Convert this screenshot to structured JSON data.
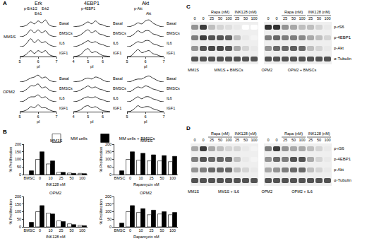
{
  "profiles": {
    "letter": "A",
    "cell_lines": [
      "MM1S",
      "OPM2"
    ],
    "conditions": [
      "Basal",
      "BMSCs",
      "IL6",
      "IGF1"
    ],
    "x_label": "pI",
    "ylim": [
      0,
      1
    ],
    "tick_labels": "x",
    "columns": [
      {
        "title": "Erk",
        "x": [
          5,
          5.2,
          5.4,
          5.6,
          5.8,
          6,
          6.2,
          6.4,
          6.6,
          6.8,
          7
        ],
        "xlim": [
          5,
          7
        ],
        "xticks": [
          5,
          6,
          7
        ],
        "peaks": [
          {
            "label": "p-Erk1/2",
            "x": 5.6
          },
          {
            "label": "Erk1",
            "x": 6.0
          },
          {
            "label": "Erk2",
            "x": 6.4
          }
        ],
        "profiles": {
          "MM1S": [
            [
              0,
              0.05,
              0.2,
              0.5,
              0.3,
              0.6,
              0.4,
              0.7,
              0.2,
              0.05,
              0
            ],
            [
              0,
              0.05,
              0.3,
              0.7,
              0.4,
              0.7,
              0.4,
              0.6,
              0.2,
              0.05,
              0
            ],
            [
              0,
              0.05,
              0.4,
              0.8,
              0.4,
              0.7,
              0.4,
              0.5,
              0.2,
              0.05,
              0
            ],
            [
              0,
              0.05,
              0.3,
              0.6,
              0.3,
              0.6,
              0.4,
              0.6,
              0.2,
              0.05,
              0
            ]
          ],
          "OPM2": [
            [
              0,
              0.05,
              0.2,
              0.4,
              0.5,
              0.7,
              0.4,
              0.5,
              0.2,
              0.05,
              0
            ],
            [
              0,
              0.05,
              0.3,
              0.6,
              0.6,
              0.8,
              0.4,
              0.5,
              0.2,
              0.05,
              0
            ],
            [
              0,
              0.05,
              0.3,
              0.5,
              0.5,
              0.7,
              0.4,
              0.5,
              0.2,
              0.05,
              0
            ],
            [
              0,
              0.05,
              0.2,
              0.5,
              0.4,
              0.7,
              0.4,
              0.4,
              0.2,
              0.05,
              0
            ]
          ]
        }
      },
      {
        "title": "4EBP1",
        "x": [
          4,
          4.25,
          4.5,
          4.75,
          5,
          5.25,
          5.5,
          5.75,
          6,
          6.25,
          6.5
        ],
        "xlim": [
          4,
          6.5
        ],
        "xticks": [
          4,
          5,
          6
        ],
        "peaks": [
          {
            "label": "p-4EBP1",
            "x": 5.0
          }
        ],
        "profiles": {
          "MM1S": [
            [
              0,
              0.05,
              0.1,
              0.3,
              0.5,
              0.3,
              0.6,
              0.3,
              0.2,
              0.05,
              0
            ],
            [
              0,
              0.05,
              0.2,
              0.5,
              0.7,
              0.4,
              0.6,
              0.3,
              0.2,
              0.05,
              0
            ],
            [
              0,
              0.05,
              0.2,
              0.4,
              0.6,
              0.4,
              0.5,
              0.3,
              0.2,
              0.05,
              0
            ],
            [
              0,
              0.05,
              0.2,
              0.6,
              0.8,
              0.4,
              0.5,
              0.3,
              0.1,
              0.05,
              0
            ]
          ],
          "OPM2": [
            [
              0,
              0.05,
              0.1,
              0.3,
              0.4,
              0.3,
              0.5,
              0.4,
              0.2,
              0.05,
              0
            ],
            [
              0,
              0.05,
              0.2,
              0.4,
              0.6,
              0.4,
              0.5,
              0.3,
              0.2,
              0.05,
              0
            ],
            [
              0,
              0.05,
              0.2,
              0.4,
              0.5,
              0.4,
              0.5,
              0.3,
              0.2,
              0.05,
              0
            ],
            [
              0,
              0.05,
              0.2,
              0.5,
              0.6,
              0.4,
              0.5,
              0.3,
              0.1,
              0.05,
              0
            ]
          ]
        }
      },
      {
        "title": "Akt",
        "x": [
          5,
          5.2,
          5.4,
          5.6,
          5.8,
          6,
          6.2,
          6.4,
          6.6,
          6.8,
          7
        ],
        "xlim": [
          5,
          7
        ],
        "xticks": [
          5,
          6,
          7
        ],
        "peaks": [
          {
            "label": "p-Akt",
            "x": 5.6
          },
          {
            "label": "Akt",
            "x": 6.2
          }
        ],
        "profiles": {
          "MM1S": [
            [
              0,
              0.05,
              0.2,
              0.4,
              0.3,
              0.6,
              0.7,
              0.4,
              0.2,
              0.05,
              0
            ],
            [
              0,
              0.05,
              0.3,
              0.6,
              0.4,
              0.6,
              0.6,
              0.3,
              0.2,
              0.05,
              0
            ],
            [
              0,
              0.05,
              0.3,
              0.5,
              0.4,
              0.6,
              0.6,
              0.3,
              0.2,
              0.05,
              0
            ],
            [
              0,
              0.05,
              0.4,
              0.7,
              0.4,
              0.5,
              0.6,
              0.3,
              0.2,
              0.05,
              0
            ]
          ],
          "OPM2": [
            [
              0,
              0.05,
              0.2,
              0.3,
              0.3,
              0.5,
              0.6,
              0.4,
              0.2,
              0.05,
              0
            ],
            [
              0,
              0.05,
              0.3,
              0.5,
              0.4,
              0.6,
              0.5,
              0.3,
              0.2,
              0.05,
              0
            ],
            [
              0,
              0.05,
              0.3,
              0.5,
              0.3,
              0.5,
              0.5,
              0.3,
              0.2,
              0.05,
              0
            ],
            [
              0,
              0.05,
              0.3,
              0.6,
              0.4,
              0.5,
              0.5,
              0.3,
              0.2,
              0.05,
              0
            ]
          ]
        }
      }
    ]
  },
  "bar_panel_letter": "B",
  "chart_data": [
    {
      "type": "bar",
      "title": "MM1S",
      "x_label": "INK128 nM",
      "y_label": "% Proliferation",
      "categories": [
        "BMSC",
        "0",
        "10",
        "25",
        "50",
        "100"
      ],
      "series": [
        {
          "name": "MM cells",
          "color": "#ffffff",
          "values": [
            null,
            100,
            70,
            15,
            10,
            8
          ]
        },
        {
          "name": "MM cells + BMSCs",
          "color": "#000000",
          "values": [
            25,
            150,
            90,
            15,
            8,
            6
          ]
        }
      ],
      "ylim": [
        0,
        200
      ],
      "yticks": [
        0,
        50,
        100,
        150,
        200
      ],
      "grid": false,
      "legend": "top"
    },
    {
      "type": "bar",
      "title": "MM1S",
      "x_label": "Rapamycin nM",
      "y_label": "% Proliferation",
      "categories": [
        "BMSC",
        "0",
        "10",
        "25",
        "50",
        "100"
      ],
      "series": [
        {
          "name": "MM cells",
          "color": "#ffffff",
          "values": [
            null,
            100,
            95,
            90,
            90,
            85
          ]
        },
        {
          "name": "MM cells + BMSCs",
          "color": "#000000",
          "values": [
            25,
            150,
            140,
            130,
            125,
            120
          ]
        }
      ],
      "ylim": [
        0,
        200
      ],
      "yticks": [
        0,
        50,
        100,
        150,
        200
      ],
      "grid": false,
      "legend": "top"
    },
    {
      "type": "bar",
      "title": "OPM2",
      "x_label": "INK128 nM",
      "y_label": "% Proliferation",
      "categories": [
        "BMSC",
        "0",
        "10",
        "25",
        "50",
        "100"
      ],
      "series": [
        {
          "name": "MM cells",
          "color": "#ffffff",
          "values": [
            null,
            100,
            90,
            40,
            20,
            10
          ]
        },
        {
          "name": "MM cells + BMSCs",
          "color": "#000000",
          "values": [
            30,
            140,
            85,
            35,
            15,
            8
          ]
        }
      ],
      "ylim": [
        0,
        200
      ],
      "yticks": [
        0,
        50,
        100,
        150,
        200
      ],
      "grid": false,
      "legend": "top"
    },
    {
      "type": "bar",
      "title": "OPM2",
      "x_label": "Rapamycin nM",
      "y_label": "% Proliferation",
      "categories": [
        "BMSC",
        "0",
        "10",
        "25",
        "50",
        "100"
      ],
      "series": [
        {
          "name": "MM cells",
          "color": "#ffffff",
          "values": [
            null,
            100,
            95,
            80,
            85,
            80
          ]
        },
        {
          "name": "MM cells + BMSCs",
          "color": "#000000",
          "values": [
            25,
            140,
            120,
            110,
            100,
            95
          ]
        }
      ],
      "ylim": [
        0,
        200
      ],
      "yticks": [
        0,
        50,
        100,
        150,
        200
      ],
      "grid": false,
      "legend": "top"
    }
  ],
  "blots": [
    {
      "letter": "C",
      "row_labels": [
        "p-rS6",
        "p-4EBP1",
        "p-Akt",
        "α-Tubulin"
      ],
      "blots": [
        {
          "lanes": [
            "0",
            "0",
            "25",
            "50",
            "100",
            "25",
            "50",
            "100"
          ],
          "groups": [
            {
              "label": "Rapa (nM)",
              "first": 2,
              "last": 4
            },
            {
              "label": "INK128 (nM)",
              "first": 5,
              "last": 7
            }
          ],
          "bottom": [
            {
              "label": "MM1S",
              "first": 0,
              "last": 0
            },
            {
              "label": "MM1S + BMSCs",
              "first": 1,
              "last": 7
            }
          ],
          "intensity": [
            [
              0.5,
              0.9,
              0.3,
              0.2,
              0.15,
              0.1,
              0,
              0
            ],
            [
              0.6,
              0.9,
              0.8,
              0.8,
              0.75,
              0.3,
              0.1,
              0.05
            ],
            [
              0.5,
              0.8,
              0.85,
              0.85,
              0.8,
              0.4,
              0.2,
              0.1
            ],
            [
              0.8,
              0.8,
              0.8,
              0.8,
              0.8,
              0.8,
              0.8,
              0.8
            ]
          ]
        },
        {
          "lanes": [
            "0",
            "0",
            "25",
            "50",
            "100",
            "25",
            "50",
            "100"
          ],
          "groups": [
            {
              "label": "Rapa (nM)",
              "first": 2,
              "last": 4
            },
            {
              "label": "INK128 (nM)",
              "first": 5,
              "last": 7
            }
          ],
          "bottom": [
            {
              "label": "OPM2",
              "first": 0,
              "last": 0
            },
            {
              "label": "OPM2 + BMSCs",
              "first": 1,
              "last": 7
            }
          ],
          "intensity": [
            [
              0.95,
              0.95,
              0.5,
              0.4,
              0.3,
              0.3,
              0.2,
              0.1
            ],
            [
              0.6,
              0.7,
              0.6,
              0.6,
              0.55,
              0.4,
              0.3,
              0.2
            ],
            [
              0.5,
              0.7,
              0.7,
              0.75,
              0.7,
              0.3,
              0.2,
              0.1
            ],
            [
              0.8,
              0.8,
              0.8,
              0.8,
              0.8,
              0.8,
              0.8,
              0.8
            ]
          ]
        }
      ]
    },
    {
      "letter": "D",
      "row_labels": [
        "p-rS6",
        "p-4EBP1",
        "p-Akt",
        "α-Tubulin"
      ],
      "blots": [
        {
          "lanes": [
            "0",
            "0",
            "25",
            "50",
            "100",
            "25",
            "50",
            "100"
          ],
          "groups": [
            {
              "label": "Rapa (nM)",
              "first": 2,
              "last": 4
            },
            {
              "label": "INK128 (nM)",
              "first": 5,
              "last": 7
            }
          ],
          "bottom": [
            {
              "label": "MM1S",
              "first": 0,
              "last": 0
            },
            {
              "label": "MM1S + IL6",
              "first": 1,
              "last": 7
            }
          ],
          "intensity": [
            [
              0.4,
              0.9,
              0.4,
              0.3,
              0.2,
              0.2,
              0.1,
              0.05
            ],
            [
              0.6,
              0.8,
              0.7,
              0.7,
              0.7,
              0.3,
              0.1,
              0.05
            ],
            [
              0.5,
              0.6,
              0.7,
              0.7,
              0.7,
              0.3,
              0.2,
              0.1
            ],
            [
              0.8,
              0.8,
              0.8,
              0.8,
              0.8,
              0.8,
              0.8,
              0.8
            ]
          ]
        },
        {
          "lanes": [
            "0",
            "0",
            "25",
            "50",
            "100",
            "25",
            "50",
            "100"
          ],
          "groups": [
            {
              "label": "Rapa (nM)",
              "first": 2,
              "last": 4
            },
            {
              "label": "INK128 (nM)",
              "first": 5,
              "last": 7
            }
          ],
          "bottom": [
            {
              "label": "OPM2",
              "first": 0,
              "last": 0
            },
            {
              "label": "OPM2 + IL6",
              "first": 1,
              "last": 7
            }
          ],
          "intensity": [
            [
              0.6,
              0.9,
              0.5,
              0.4,
              0.4,
              0.3,
              0.2,
              0.1
            ],
            [
              0.5,
              0.7,
              0.6,
              0.8,
              0.8,
              0.4,
              0.2,
              0.1
            ],
            [
              0.4,
              0.5,
              0.6,
              0.7,
              0.7,
              0.3,
              0.2,
              0.1
            ],
            [
              0.8,
              0.8,
              0.8,
              0.8,
              0.8,
              0.8,
              0.8,
              0.8
            ]
          ]
        }
      ]
    }
  ]
}
